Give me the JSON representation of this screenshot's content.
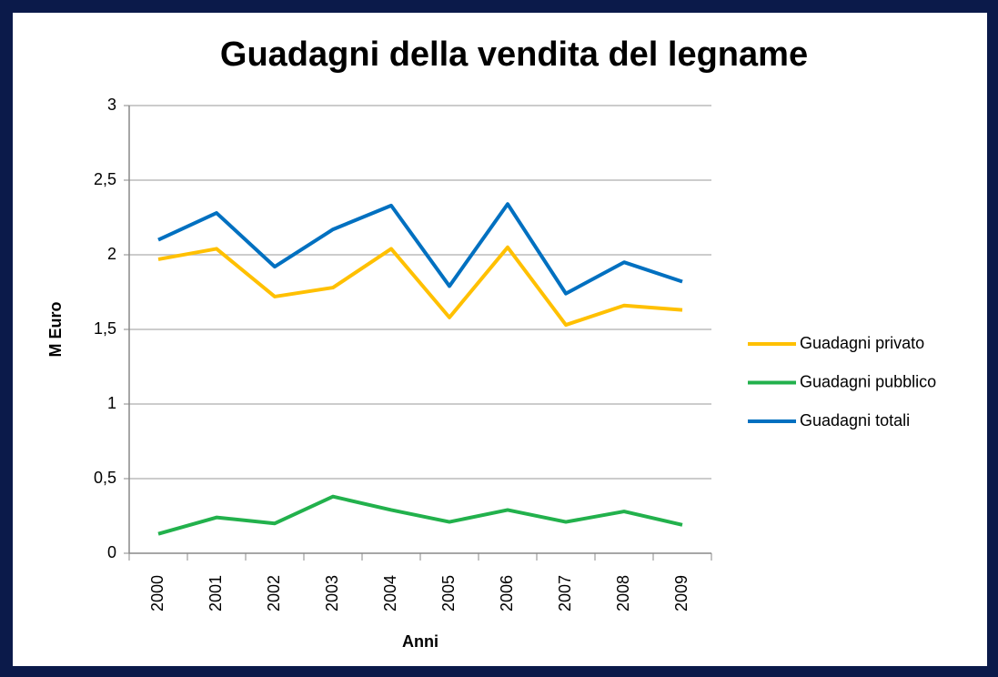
{
  "chart_data": {
    "type": "line",
    "title": "Guadagni della vendita del legname",
    "x_label": "Anni",
    "y_label": "M Euro",
    "categories": [
      "2000",
      "2001",
      "2002",
      "2003",
      "2004",
      "2005",
      "2006",
      "2007",
      "2008",
      "2009"
    ],
    "series": [
      {
        "name": "Guadagni privato",
        "color": "#ffc000",
        "values": [
          1.97,
          2.04,
          1.72,
          1.78,
          2.04,
          1.58,
          2.05,
          1.53,
          1.66,
          1.63
        ]
      },
      {
        "name": "Guadagni pubblico",
        "color": "#22b14c",
        "values": [
          0.13,
          0.24,
          0.2,
          0.38,
          0.29,
          0.21,
          0.29,
          0.21,
          0.28,
          0.19
        ]
      },
      {
        "name": "Guadagni totali",
        "color": "#0070c0",
        "values": [
          2.1,
          2.28,
          1.92,
          2.17,
          2.33,
          1.79,
          2.34,
          1.74,
          1.95,
          1.82
        ]
      }
    ],
    "ylim": [
      0,
      3
    ],
    "yticks": [
      0,
      {
        "value": 0.5,
        "label": "0,5"
      },
      1,
      {
        "value": 1.5,
        "label": "1,5"
      },
      2,
      {
        "value": 2.5,
        "label": "2,5"
      },
      3
    ],
    "grid": true,
    "legend": "right"
  }
}
